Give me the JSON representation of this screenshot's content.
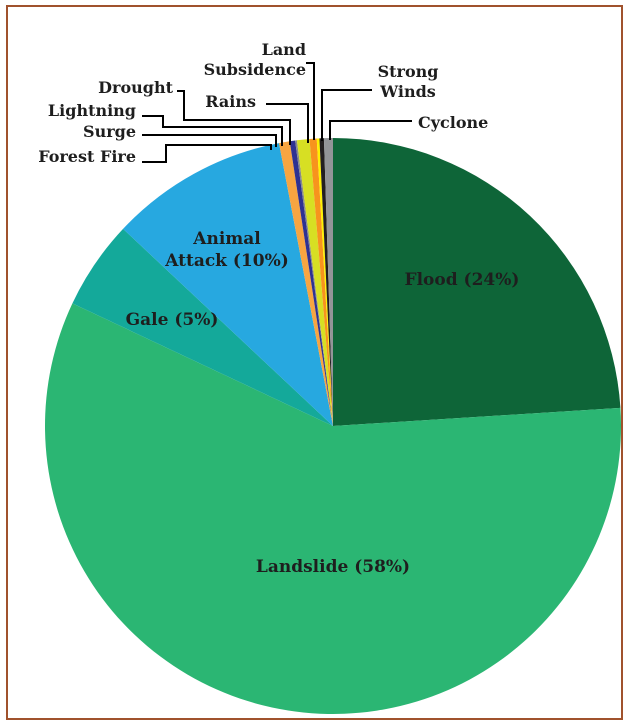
{
  "chart_data": {
    "type": "pie",
    "start_angle_deg": 0,
    "direction": "clockwise",
    "slices": [
      {
        "name": "Flood",
        "value": 24,
        "color": "#0e6538",
        "label": "Flood (24%)"
      },
      {
        "name": "Landslide",
        "value": 58,
        "color": "#2bb673",
        "label": "Landslide (58%)"
      },
      {
        "name": "Gale",
        "value": 5,
        "color": "#14a99a",
        "label": "Gale (5%)"
      },
      {
        "name": "Animal Attack",
        "value": 10,
        "color": "#27a8e0",
        "label": [
          "Animal",
          "Attack (10%)"
        ]
      },
      {
        "name": "Forest Fire",
        "value": 0.6,
        "color": "#f7a541",
        "label": "Forest Fire"
      },
      {
        "name": "Surge",
        "value": 0.3,
        "color": "#2e3192",
        "label": "Surge"
      },
      {
        "name": "Lightning",
        "value": 0.1,
        "color": "#8a8a8a",
        "label": "Lightning"
      },
      {
        "name": "Drought",
        "value": 0.7,
        "color": "#d7df23",
        "label": "Drought"
      },
      {
        "name": "Rains",
        "value": 0.4,
        "color": "#f7941d",
        "label": "Rains"
      },
      {
        "name": "Land Subsidence",
        "value": 0.15,
        "color": "#fff200",
        "label": [
          "Land",
          "Subsidence"
        ]
      },
      {
        "name": "Strong Winds",
        "value": 0.25,
        "color": "#231f20",
        "label": [
          "Strong",
          "Winds"
        ]
      },
      {
        "name": "Cyclone",
        "value": 0.5,
        "color": "#939598",
        "label": "Cyclone"
      }
    ]
  }
}
